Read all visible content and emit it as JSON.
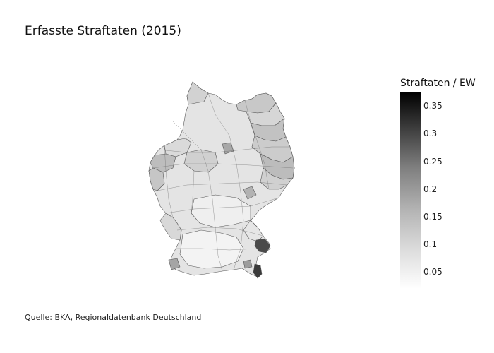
{
  "title": "Erfasste Straftaten (2015)",
  "source": "Quelle: BKA, Regionaldatenbank Deutschland",
  "legend": {
    "title": "Straftaten / EW",
    "ticks": [
      "0.35",
      "0.3",
      "0.25",
      "0.2",
      "0.15",
      "0.1",
      "0.05"
    ]
  },
  "colorscale": {
    "min_color": "#ffffff",
    "max_color": "#000000",
    "range": [
      0.02,
      0.37
    ]
  }
}
